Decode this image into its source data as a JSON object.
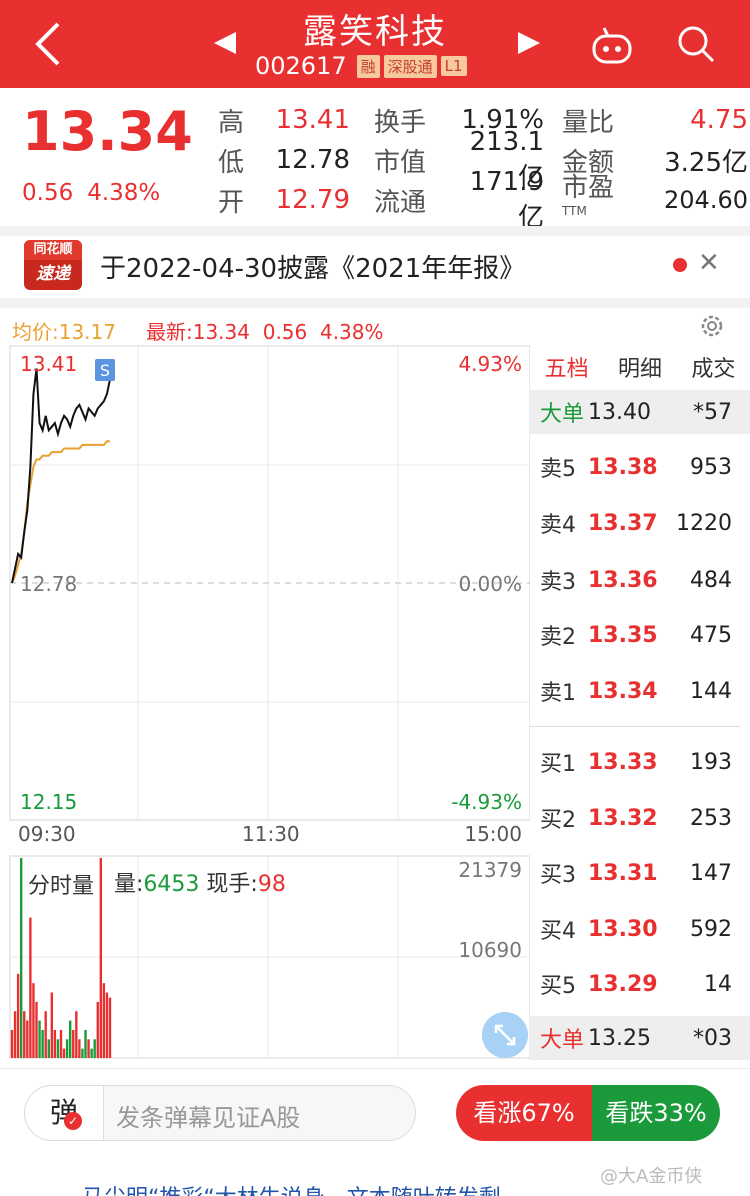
{
  "header": {
    "title": "露笑科技",
    "code": "002617",
    "tags": [
      "融",
      "深股通",
      "L1"
    ],
    "bg_color": "#e93030"
  },
  "quote": {
    "price": "13.34",
    "change": "0.56",
    "change_pct": "4.38%",
    "fields": [
      {
        "label": "高",
        "value": "13.41"
      },
      {
        "label": "换手",
        "value": "1.91%"
      },
      {
        "label": "量比",
        "value": "4.75"
      },
      {
        "label": "低",
        "value": "12.78"
      },
      {
        "label": "市值",
        "value": "213.1亿"
      },
      {
        "label": "金额",
        "value": "3.25亿"
      },
      {
        "label": "开",
        "value": "12.79"
      },
      {
        "label": "流通",
        "value": "171.9亿"
      },
      {
        "label": "市盈",
        "value": "204.60",
        "sup": "TTM"
      }
    ]
  },
  "news": {
    "logo_top": "同花顺",
    "logo_bottom": "速递",
    "text": "于2022-04-30披露《2021年年报》"
  },
  "intraday": {
    "avg_label": "均价:13.17",
    "latest_label": "最新:13.34",
    "latest_change": "0.56",
    "latest_pct": "4.38%",
    "y_high": "13.41",
    "y_mid": "12.78",
    "y_low": "12.15",
    "pct_high": "4.93%",
    "pct_mid": "0.00%",
    "pct_low": "-4.93%",
    "t_start": "09:30",
    "t_mid": "11:30",
    "t_end": "15:00",
    "s_marker": "S",
    "vol_title": "分时量",
    "vol_label": "量:",
    "vol_value": "6453",
    "hand_label": "现手:",
    "hand_value": "98",
    "vol_max": "21379",
    "vol_mid": "10690"
  },
  "chart_data": {
    "type": "line",
    "x_range": [
      "09:30",
      "15:00"
    ],
    "ylim": [
      12.15,
      13.41
    ],
    "series": [],
    "price": [
      12.78,
      12.82,
      12.86,
      12.85,
      12.92,
      12.98,
      13.1,
      13.3,
      13.37,
      13.22,
      13.2,
      13.24,
      13.2,
      13.21,
      13.22,
      13.19,
      13.22,
      13.24,
      13.23,
      13.21,
      13.24,
      13.26,
      13.27,
      13.25,
      13.23,
      13.26,
      13.25,
      13.24,
      13.26,
      13.27,
      13.28,
      13.3,
      13.34
    ],
    "avg": [
      12.78,
      12.8,
      12.83,
      12.86,
      12.92,
      13.0,
      13.05,
      13.1,
      13.12,
      13.12,
      13.13,
      13.13,
      13.13,
      13.14,
      13.14,
      13.14,
      13.14,
      13.15,
      13.15,
      13.15,
      13.15,
      13.15,
      13.15,
      13.16,
      13.16,
      13.16,
      13.16,
      13.16,
      13.16,
      13.16,
      13.16,
      13.17,
      13.17
    ],
    "volume": [
      3000,
      5000,
      9000,
      21379,
      5000,
      4000,
      15000,
      8000,
      6000,
      4000,
      3000,
      5000,
      2000,
      7000,
      3000,
      2000,
      3000,
      1000,
      2000,
      4000,
      3000,
      5000,
      2000,
      1000,
      3000,
      2000,
      1000,
      2000,
      6000,
      21379,
      8000,
      7000,
      6453
    ]
  },
  "order_book": {
    "tabs": [
      "五档",
      "明细",
      "成交"
    ],
    "big_top": {
      "label": "大单",
      "price": "13.40",
      "vol": "*57"
    },
    "sells": [
      {
        "label": "卖5",
        "price": "13.38",
        "vol": "953"
      },
      {
        "label": "卖4",
        "price": "13.37",
        "vol": "1220"
      },
      {
        "label": "卖3",
        "price": "13.36",
        "vol": "484"
      },
      {
        "label": "卖2",
        "price": "13.35",
        "vol": "475"
      },
      {
        "label": "卖1",
        "price": "13.34",
        "vol": "144"
      }
    ],
    "buys": [
      {
        "label": "买1",
        "price": "13.33",
        "vol": "193"
      },
      {
        "label": "买2",
        "price": "13.32",
        "vol": "253"
      },
      {
        "label": "买3",
        "price": "13.31",
        "vol": "147"
      },
      {
        "label": "买4",
        "price": "13.30",
        "vol": "592"
      },
      {
        "label": "买5",
        "price": "13.29",
        "vol": "14"
      }
    ],
    "big_bottom": {
      "label": "大单",
      "price": "13.25",
      "vol": "*03"
    }
  },
  "bottom": {
    "danmu_button": "弹",
    "danmu_placeholder": "发条弹幕见证A股",
    "vote_up": "看涨67%",
    "vote_down": "看跌33%",
    "peek_text": "＿马尖明“推彩“大林生说身，文本随叶转发剩"
  },
  "watermark": "@大A金币侠"
}
